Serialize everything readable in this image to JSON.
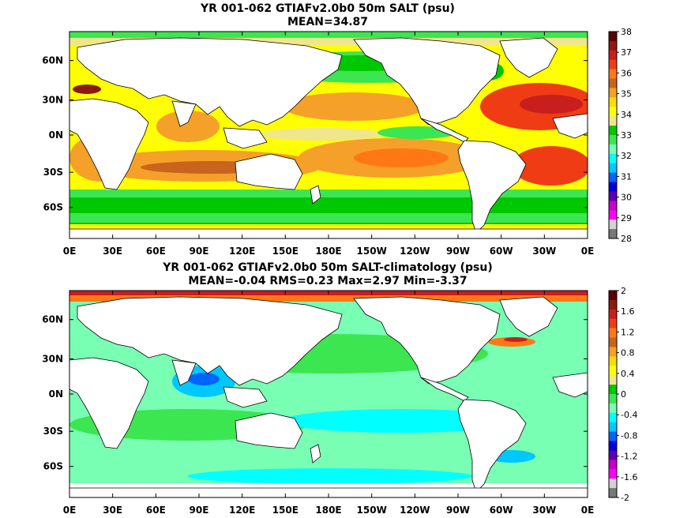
{
  "panels": [
    {
      "title_line1": "YR 001-062 GTIAFv2.0b0 50m SALT (psu)",
      "title_line2": "MEAN=34.87"
    },
    {
      "title_line1": "YR 001-062 GTIAFv2.0b0 50m SALT-climatology (psu)",
      "title_line2": "MEAN=-0.04   RMS=0.23   Max=2.97   Min=-3.37"
    }
  ],
  "chart_data": [
    {
      "type": "heatmap",
      "title": "YR 001-062 GTIAFv2.0b0 50m SALT (psu)",
      "subtitle": "MEAN=34.87",
      "x_ticks": [
        "0E",
        "30E",
        "60E",
        "90E",
        "120E",
        "150E",
        "180E",
        "150W",
        "120W",
        "90W",
        "60W",
        "30W",
        "0E"
      ],
      "y_ticks": [
        "60N",
        "30N",
        "0N",
        "30S",
        "60S"
      ],
      "colorbar": {
        "ticks": [
          "38",
          "37",
          "36",
          "35",
          "34",
          "33",
          "32",
          "31",
          "30",
          "29",
          "28"
        ],
        "colors": [
          "#5a0000",
          "#8c1a0f",
          "#c81e1e",
          "#f03c14",
          "#ff7814",
          "#c8641e",
          "#f5a028",
          "#fadc00",
          "#ffff00",
          "#f0e68c",
          "#00c800",
          "#3ce650",
          "#78ffb4",
          "#00ffff",
          "#00c8ff",
          "#0064ff",
          "#0000dc",
          "#5a00b4",
          "#c800c8",
          "#ff00ff",
          "#d2d2d2",
          "#787878"
        ]
      },
      "mean": 34.87
    },
    {
      "type": "heatmap",
      "title": "YR 001-062 GTIAFv2.0b0 50m SALT-climatology (psu)",
      "subtitle": "MEAN=-0.04   RMS=0.23   Max=2.97   Min=-3.37",
      "x_ticks": [
        "0E",
        "30E",
        "60E",
        "90E",
        "120E",
        "150E",
        "180E",
        "150W",
        "120W",
        "90W",
        "60W",
        "30W",
        "0E"
      ],
      "y_ticks": [
        "60N",
        "30N",
        "0N",
        "30S",
        "60S"
      ],
      "colorbar": {
        "ticks": [
          "2",
          "1.6",
          "1.2",
          "0.8",
          "0.4",
          "0",
          "-0.4",
          "-0.8",
          "-1.2",
          "-1.6",
          "-2"
        ],
        "colors": [
          "#5a0000",
          "#8c1a0f",
          "#c81e1e",
          "#f03c14",
          "#ff7814",
          "#c8641e",
          "#f5a028",
          "#fadc00",
          "#ffff00",
          "#f0e68c",
          "#00c800",
          "#3ce650",
          "#78ffb4",
          "#00ffff",
          "#00c8ff",
          "#0064ff",
          "#0000dc",
          "#5a00b4",
          "#c800c8",
          "#ff00ff",
          "#d2d2d2",
          "#787878"
        ]
      },
      "mean": -0.04,
      "rms": 0.23,
      "max": 2.97,
      "min": -3.37
    }
  ]
}
